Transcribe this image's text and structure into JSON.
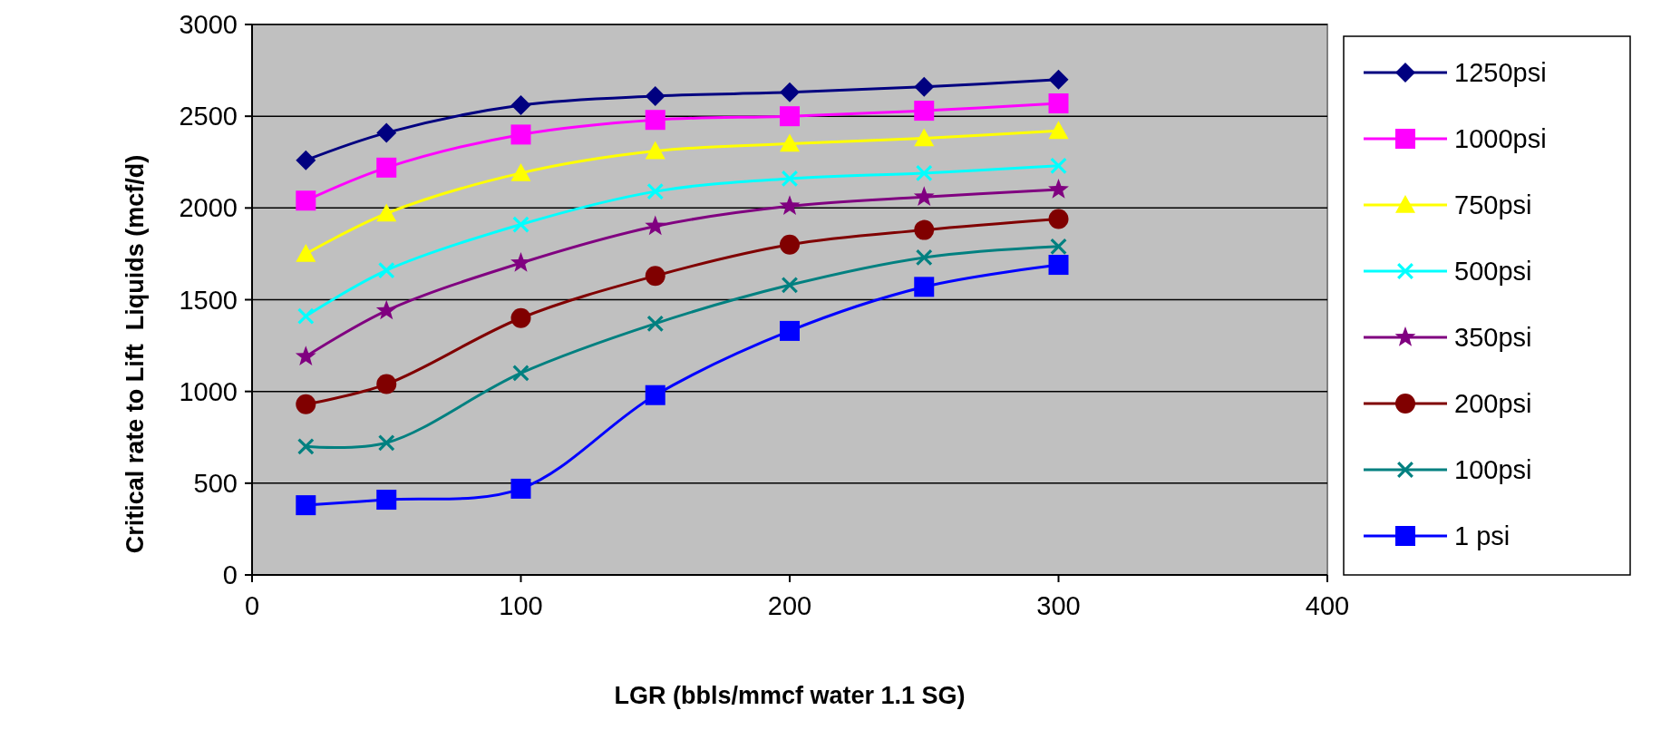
{
  "chart_data": {
    "type": "line",
    "xlabel": "LGR (bbls/mmcf water 1.1 SG)",
    "ylabel": "Critical rate to Lift  Liquids (mcf/d)",
    "x": [
      20,
      50,
      100,
      150,
      200,
      250,
      300
    ],
    "xlim": [
      0,
      400
    ],
    "xticks": [
      0,
      100,
      200,
      300,
      400
    ],
    "ylim": [
      0,
      3000
    ],
    "yticks": [
      0,
      500,
      1000,
      1500,
      2000,
      2500,
      3000
    ],
    "grid": "y",
    "legend": "right",
    "line_style": "solid",
    "series": [
      {
        "name": "1250psi",
        "color": "#000080",
        "marker": "diamond",
        "values": [
          2260,
          2410,
          2560,
          2610,
          2630,
          2660,
          2700
        ]
      },
      {
        "name": "1000psi",
        "color": "#ff00ff",
        "marker": "square",
        "values": [
          2040,
          2220,
          2400,
          2480,
          2500,
          2530,
          2570
        ]
      },
      {
        "name": "750psi",
        "color": "#ffff00",
        "marker": "triangle",
        "values": [
          1750,
          1970,
          2190,
          2310,
          2350,
          2380,
          2420
        ]
      },
      {
        "name": "500psi",
        "color": "#00ffff",
        "marker": "cross",
        "values": [
          1410,
          1660,
          1910,
          2090,
          2160,
          2190,
          2230
        ]
      },
      {
        "name": "350psi",
        "color": "#800080",
        "marker": "star",
        "values": [
          1190,
          1440,
          1700,
          1900,
          2010,
          2060,
          2100
        ]
      },
      {
        "name": "200psi",
        "color": "#800000",
        "marker": "circle",
        "values": [
          930,
          1040,
          1400,
          1630,
          1800,
          1880,
          1940
        ]
      },
      {
        "name": "100psi",
        "color": "#008080",
        "marker": "cross",
        "values": [
          700,
          720,
          1100,
          1370,
          1580,
          1730,
          1790
        ]
      },
      {
        "name": "1 psi",
        "color": "#0000ff",
        "marker": "square",
        "values": [
          380,
          410,
          470,
          980,
          1330,
          1570,
          1690
        ]
      }
    ]
  }
}
